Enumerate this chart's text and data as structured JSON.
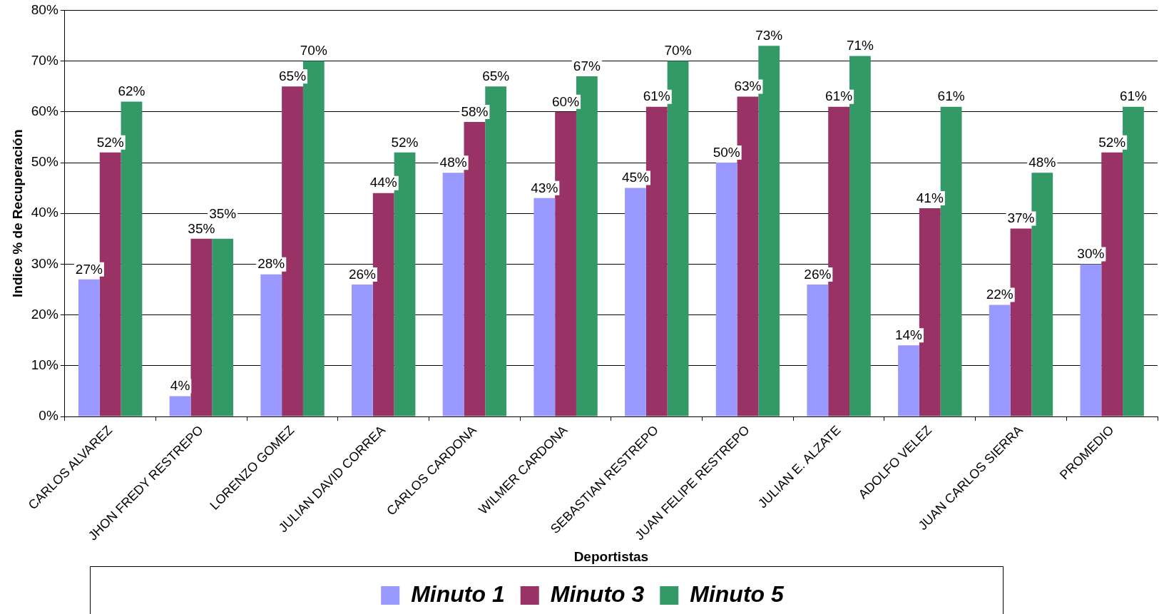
{
  "chart_data": {
    "type": "bar",
    "xlabel": "Deportistas",
    "ylabel": "Indice % de Recuperación",
    "categories": [
      "CARLOS ALVAREZ",
      "JHON FREDY RESTREPO",
      "LORENZO GOMEZ",
      "JULIAN DAVID CORREA",
      "CARLOS CARDONA",
      "WILMER CARDONA",
      "SEBASTIAN RESTREPO",
      "JUAN FELIPE RESTREPO",
      "JULIAN E. ALZATE",
      "ADOLFO VELEZ",
      "JUAN CARLOS SIERRA",
      "PROMEDIO"
    ],
    "series": [
      {
        "name": "Minuto 1",
        "color": "#9999ff",
        "values": [
          27,
          4,
          28,
          26,
          48,
          43,
          45,
          50,
          26,
          14,
          22,
          30
        ],
        "value_labels": [
          "27%",
          "4%",
          "28%",
          "26%",
          "48%",
          "43%",
          "45%",
          "50%",
          "26%",
          "14%",
          "22%",
          "30%"
        ]
      },
      {
        "name": "Minuto 3",
        "color": "#993366",
        "values": [
          52,
          35,
          65,
          44,
          58,
          60,
          61,
          63,
          61,
          41,
          37,
          52
        ],
        "value_labels": [
          "52%",
          "35%",
          "65%",
          "44%",
          "58%",
          "60%",
          "61%",
          "63%",
          "61%",
          "41%",
          "37%",
          "52%"
        ]
      },
      {
        "name": "Minuto 5",
        "color": "#339966",
        "values": [
          62,
          35,
          70,
          52,
          65,
          67,
          70,
          73,
          71,
          61,
          48,
          61
        ],
        "value_labels": [
          "62%",
          "35%",
          "70%",
          "52%",
          "65%",
          "67%",
          "70%",
          "73%",
          "71%",
          "61%",
          "48%",
          "61%"
        ]
      }
    ],
    "ylim": [
      0,
      80
    ],
    "yticks": [
      {
        "value": 0,
        "label": "0%"
      },
      {
        "value": 10,
        "label": "10%"
      },
      {
        "value": 20,
        "label": "20%"
      },
      {
        "value": 30,
        "label": "30%"
      },
      {
        "value": 40,
        "label": "40%"
      },
      {
        "value": 50,
        "label": "50%"
      },
      {
        "value": 60,
        "label": "60%"
      },
      {
        "value": 70,
        "label": "70%"
      },
      {
        "value": 80,
        "label": "80%"
      }
    ],
    "grid": "y",
    "legend": "bottom"
  }
}
